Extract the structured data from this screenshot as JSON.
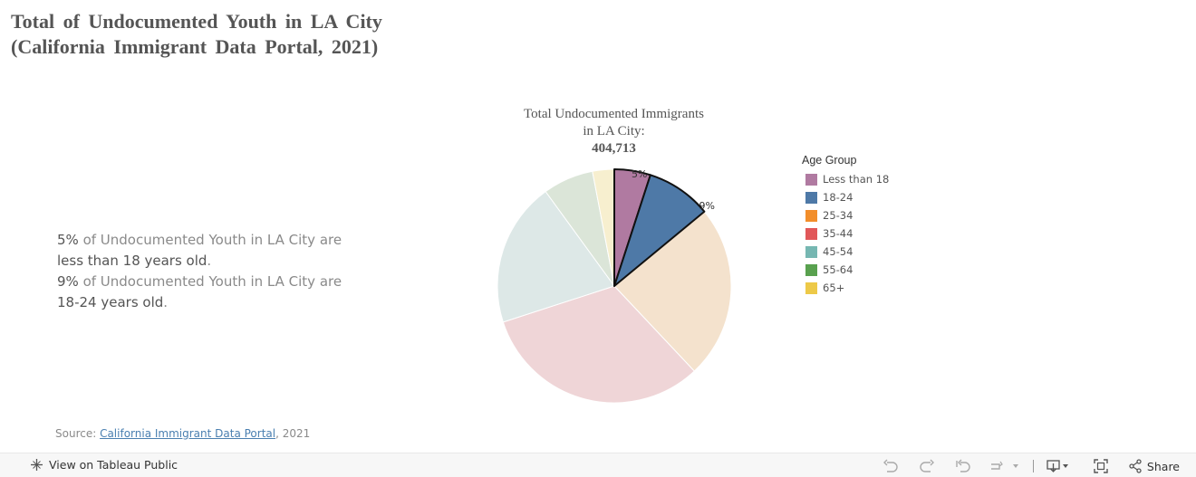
{
  "title": {
    "line1": "Total of Undocumented Youth in LA City",
    "line2": "(California Immigrant Data Portal, 2021)"
  },
  "description": {
    "p1_pct": "5%",
    "p1_mid": " of Undocumented Youth in LA City are",
    "p1_end": "less than 18 years old",
    "p2_pct": "9%",
    "p2_mid": " of Undocumented Youth in LA City are",
    "p2_end": "18-24 years old",
    "period": "."
  },
  "chart_header": {
    "line1": "Total Undocumented Immigrants",
    "line2": "in LA City:",
    "total": "404,713"
  },
  "chart_data": {
    "type": "pie",
    "title": "Total Undocumented Immigrants in LA City: 404,713",
    "legend_title": "Age Group",
    "legend_position": "right",
    "categories": [
      "Less than 18",
      "18-24",
      "25-34",
      "35-44",
      "45-54",
      "55-64",
      "65+"
    ],
    "values": [
      5,
      9,
      24,
      32,
      20,
      7,
      3
    ],
    "data_labels": [
      "5%",
      "9%",
      "",
      "",
      "",
      "",
      ""
    ],
    "highlighted": [
      "Less than 18",
      "18-24"
    ],
    "colors": [
      "#b07aa1",
      "#4e79a7",
      "#f28e2b",
      "#e15759",
      "#76b7b2",
      "#59a14f",
      "#edc948"
    ],
    "faded_colors": [
      "#b07aa1",
      "#4e79a7",
      "#f4e2cd",
      "#efd5d7",
      "#dde8e7",
      "#dbe5d8",
      "#f7efcf"
    ]
  },
  "source": {
    "prefix": "Source: ",
    "link": "California Immigrant Data Portal",
    "suffix": ", 2021"
  },
  "footer": {
    "view_label": "View on Tableau Public",
    "share_label": "Share"
  }
}
